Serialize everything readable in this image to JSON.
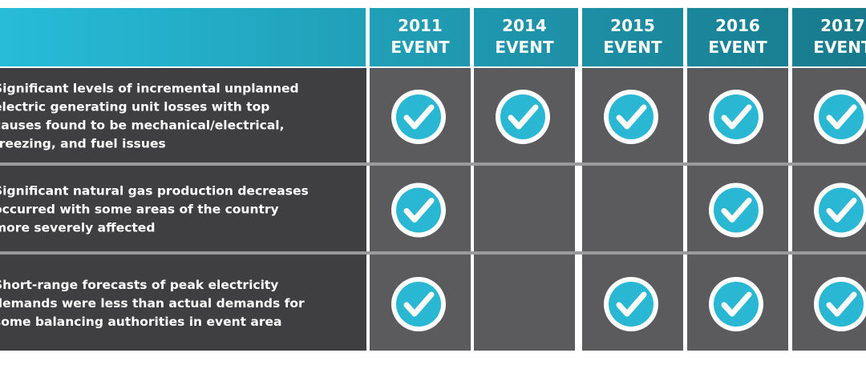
{
  "columns": [
    {
      "year": "2011",
      "label": "EVENT"
    },
    {
      "year": "2014",
      "label": "EVENT"
    },
    {
      "year": "2015",
      "label": "EVENT"
    },
    {
      "year": "2016",
      "label": "EVENT"
    },
    {
      "year": "2017",
      "label": "EVENT"
    }
  ],
  "rows": [
    {
      "lines": [
        "Significant levels of incremental unplanned",
        "electric generating unit losses with top",
        "causes found to be mechanical/electrical,",
        "freezing, and fuel issues"
      ],
      "checks": [
        true,
        true,
        true,
        true,
        true
      ]
    },
    {
      "lines": [
        "Significant natural gas production decreases",
        "occurred with some areas of the country",
        "more severely affected"
      ],
      "checks": [
        true,
        false,
        false,
        true,
        true
      ]
    },
    {
      "lines": [
        "Short-range forecasts of peak electricity",
        "demands were less than actual demands for",
        "some balancing authorities in event area"
      ],
      "checks": [
        true,
        false,
        true,
        true,
        true
      ]
    }
  ]
}
